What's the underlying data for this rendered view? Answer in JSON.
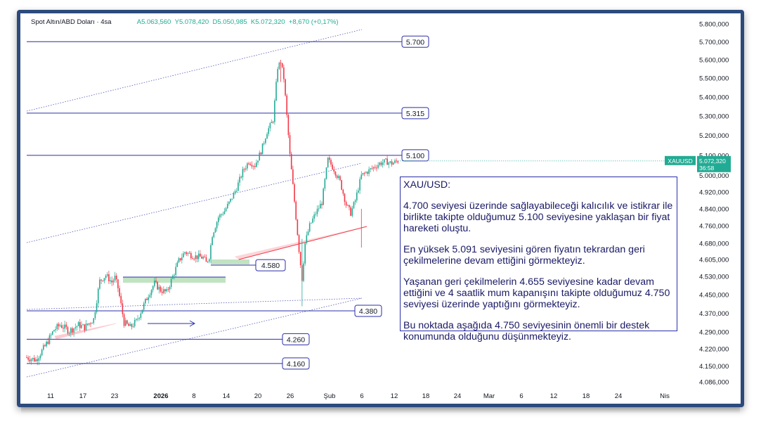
{
  "legend": {
    "symbol": "Spot Altın/ABD Doları · 4sa",
    "open_label": "A",
    "open": "5.063,560",
    "high_label": "Y",
    "high": "5.078,420",
    "low_label": "D",
    "low": "5.050,985",
    "close_label": "K",
    "close": "5.072,320",
    "change": "+8,670 (+0,17%)"
  },
  "price_tag": {
    "symbol": "XAUUSD",
    "price": "5.072,320",
    "countdown": "36:58"
  },
  "colors": {
    "up": "#22ab94",
    "down": "#f23645",
    "level": "#2b2fa8",
    "pattern": "#f23645",
    "box": "#4caf50"
  },
  "annotation": {
    "paragraphs": [
      "XAU/USD:",
      "4.700 seviyesi üzerinde sağlayabileceği kalıcılık ve istikrar ile birlikte takipte olduğumuz 5.100 seviyesine yaklaşan bir fiyat hareketi oluştu.",
      "En yüksek 5.091 seviyesini gören fiyatın tekrardan geri çekilmelerine devam ettiğini görmekteyiz.",
      "Yaşanan geri çekilmelerin 4.655 seviyesine kadar devam ettiğini ve 4 saatlik mum kapanışını takipte olduğumuz 4.750 seviyesi üzerinde yaptığını görmekteyiz.",
      "Bu noktada aşağıda 4.750 seviyesinin önemli bir destek konumunda olduğunu düşünmekteyiz."
    ]
  },
  "chart_data": {
    "type": "candlestick",
    "instrument": "XAUUSD",
    "timeframe": "4sa",
    "y_axis": {
      "scale": "log",
      "range": [
        4050,
        5900
      ],
      "ticks": [
        "5.800,000",
        "5.700,000",
        "5.600,000",
        "5.500,000",
        "5.400,000",
        "5.300,000",
        "5.200,000",
        "5.100,000",
        "5.000,000",
        "4.920,000",
        "4.840,000",
        "4.760,000",
        "4.680,000",
        "4.605,000",
        "4.530,000",
        "4.450,000",
        "4.370,000",
        "4.290,000",
        "4.220,000",
        "4.150,000",
        "4.086,000"
      ],
      "tick_values": [
        5800,
        5700,
        5600,
        5500,
        5400,
        5300,
        5200,
        5100,
        5000,
        4920,
        4840,
        4760,
        4680,
        4605,
        4530,
        4450,
        4370,
        4290,
        4220,
        4150,
        4086
      ]
    },
    "x_axis": {
      "ticks": [
        "11",
        "17",
        "23",
        "2026",
        "8",
        "14",
        "20",
        "26",
        "Şub",
        "6",
        "12",
        "18",
        "24",
        "Mar",
        "6",
        "12",
        "18",
        "24",
        "Nis"
      ],
      "bold": [
        "2026"
      ]
    },
    "levels": [
      {
        "label": "5.700",
        "value": 5700
      },
      {
        "label": "5.315",
        "value": 5315
      },
      {
        "label": "5.100",
        "value": 5100
      },
      {
        "label": "4.580",
        "value": 4580
      },
      {
        "label": "4.380",
        "value": 4380
      },
      {
        "label": "4.260",
        "value": 4260
      },
      {
        "label": "4.160",
        "value": 4160
      }
    ],
    "series": [
      {
        "path": [
          [
            0,
            4185
          ],
          [
            6,
            4175
          ],
          [
            12,
            4230
          ],
          [
            18,
            4300
          ],
          [
            22,
            4320
          ],
          [
            28,
            4295
          ],
          [
            34,
            4320
          ],
          [
            38,
            4310
          ],
          [
            44,
            4345
          ],
          [
            48,
            4510
          ],
          [
            52,
            4535
          ],
          [
            56,
            4505
          ],
          [
            58,
            4525
          ],
          [
            60,
            4480
          ],
          [
            64,
            4330
          ],
          [
            68,
            4310
          ],
          [
            72,
            4335
          ],
          [
            76,
            4390
          ],
          [
            80,
            4450
          ],
          [
            84,
            4500
          ],
          [
            88,
            4470
          ],
          [
            92,
            4460
          ],
          [
            96,
            4530
          ],
          [
            100,
            4600
          ],
          [
            104,
            4640
          ],
          [
            110,
            4620
          ],
          [
            116,
            4615
          ],
          [
            118,
            4590
          ],
          [
            120,
            4620
          ],
          [
            122,
            4720
          ],
          [
            126,
            4800
          ],
          [
            130,
            4830
          ],
          [
            134,
            4880
          ],
          [
            138,
            4940
          ],
          [
            142,
            5020
          ],
          [
            146,
            5070
          ],
          [
            150,
            5050
          ],
          [
            154,
            5120
          ],
          [
            158,
            5220
          ],
          [
            162,
            5280
          ],
          [
            165,
            5560
          ],
          [
            167,
            5590
          ],
          [
            169,
            5500
          ],
          [
            171,
            5300
          ],
          [
            173,
            5100
          ],
          [
            175,
            4950
          ],
          [
            177,
            4800
          ],
          [
            179,
            4650
          ],
          [
            181,
            4520
          ],
          [
            183,
            4680
          ],
          [
            186,
            4760
          ],
          [
            190,
            4820
          ],
          [
            194,
            4870
          ],
          [
            198,
            5080
          ],
          [
            202,
            5030
          ],
          [
            206,
            4970
          ],
          [
            210,
            4860
          ],
          [
            213,
            4820
          ],
          [
            216,
            4880
          ],
          [
            220,
            5000
          ],
          [
            224,
            5020
          ],
          [
            228,
            5040
          ],
          [
            232,
            5060
          ],
          [
            236,
            5070
          ],
          [
            240,
            5060
          ],
          [
            244,
            5072
          ]
        ]
      }
    ],
    "current_price": 5072.32
  }
}
